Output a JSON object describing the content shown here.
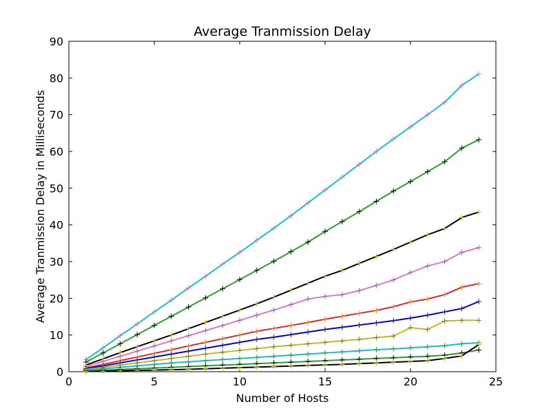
{
  "chart_data": {
    "type": "line",
    "title": "Average Tranmission Delay",
    "xlabel": "Number of Hosts",
    "ylabel": "Average Tranmission Delay in Milliseconds",
    "xlim": [
      0,
      25
    ],
    "ylim": [
      0,
      90
    ],
    "x_ticks": [
      "0",
      "5",
      "10",
      "15",
      "20",
      "25"
    ],
    "y_ticks": [
      "0",
      "10",
      "20",
      "30",
      "40",
      "50",
      "60",
      "70",
      "80",
      "90"
    ],
    "grid": false,
    "legend": "none",
    "marker": "plus",
    "x": [
      1,
      2,
      3,
      4,
      5,
      6,
      7,
      8,
      9,
      10,
      11,
      12,
      13,
      14,
      15,
      16,
      17,
      18,
      19,
      20,
      21,
      22,
      23,
      24
    ],
    "series": [
      {
        "color": "#17becf",
        "marker_color": "#e377c2",
        "values": [
          3.3,
          6.5,
          9.8,
          13,
          16.3,
          19.5,
          22.8,
          26,
          29.3,
          32.5,
          35.8,
          39.1,
          42.5,
          46,
          49.5,
          53,
          56.5,
          60,
          63.4,
          66.7,
          70,
          73.4,
          78,
          81.1
        ]
      },
      {
        "color": "#2ca02c",
        "marker_color": "#000000",
        "values": [
          2.6,
          5.1,
          7.6,
          10.1,
          12.6,
          15.1,
          17.6,
          20.1,
          22.6,
          25.1,
          27.6,
          30.1,
          32.7,
          35.3,
          38.2,
          40.9,
          43.6,
          46.4,
          49.2,
          51.8,
          54.5,
          57.2,
          60.9,
          63.2
        ]
      },
      {
        "color": "#000000",
        "marker_color": "#bcbd22",
        "values": [
          1.8,
          3.5,
          5.2,
          6.8,
          8.4,
          10,
          11.7,
          13.4,
          15.1,
          16.8,
          18.5,
          20.3,
          22.2,
          24.1,
          26,
          27.6,
          29.5,
          31.4,
          33.3,
          35.3,
          37.3,
          39,
          42,
          43.5
        ]
      },
      {
        "color": "#e377c2",
        "marker_color": "#9467bd",
        "values": [
          1.4,
          2.8,
          4.2,
          5.6,
          7,
          8.4,
          9.8,
          11.2,
          12.6,
          14,
          15.4,
          16.8,
          18.3,
          19.8,
          20.5,
          21,
          22.1,
          23.5,
          25,
          27,
          28.8,
          30,
          32.5,
          33.8
        ]
      },
      {
        "color": "#d62728",
        "marker_color": "#ff7f0e",
        "values": [
          1,
          2,
          3,
          4,
          5,
          6,
          7,
          8,
          9,
          10,
          11,
          11.8,
          12.6,
          13.4,
          14.3,
          15.1,
          15.9,
          16.7,
          17.7,
          19,
          19.8,
          21,
          23,
          24
        ]
      },
      {
        "color": "#0000cc",
        "marker_color": "#1f1f8f",
        "values": [
          0.8,
          1.6,
          2.4,
          3.2,
          4,
          4.8,
          5.6,
          6.4,
          7.2,
          8,
          8.8,
          9.4,
          10.1,
          10.8,
          11.5,
          12.1,
          12.7,
          13.3,
          13.9,
          14.6,
          15.4,
          16.3,
          17.2,
          19.1
        ]
      },
      {
        "color": "#bcbd22",
        "marker_color": "#8c6d31",
        "values": [
          0.6,
          1.2,
          1.8,
          2.4,
          3,
          3.6,
          4.2,
          4.8,
          5.3,
          5.8,
          6.3,
          6.8,
          7.2,
          7.6,
          8,
          8.4,
          8.8,
          9.3,
          9.7,
          12,
          11.5,
          13.8,
          14,
          14
        ]
      },
      {
        "color": "#17becf",
        "marker_color": "#2ca02c",
        "values": [
          0.4,
          0.8,
          1.2,
          1.6,
          2,
          2.4,
          2.7,
          3,
          3.3,
          3.6,
          3.9,
          4.2,
          4.5,
          4.8,
          5.1,
          5.4,
          5.7,
          6,
          6.2,
          6.5,
          6.8,
          7.1,
          7.6,
          7.9
        ]
      },
      {
        "color": "#2ca02c",
        "marker_color": "#000000",
        "values": [
          0.2,
          0.4,
          0.6,
          0.8,
          1,
          1.2,
          1.4,
          1.6,
          1.8,
          2,
          2.2,
          2.4,
          2.6,
          2.8,
          3,
          3.2,
          3.4,
          3.6,
          3.8,
          4,
          4.2,
          4.5,
          5.1,
          5.9
        ]
      },
      {
        "color": "#000000",
        "marker_color": "#bcbd22",
        "values": [
          0.05,
          0.15,
          0.25,
          0.35,
          0.45,
          0.55,
          0.65,
          0.8,
          0.95,
          1.1,
          1.25,
          1.4,
          1.55,
          1.7,
          1.85,
          2,
          2.2,
          2.4,
          2.6,
          2.8,
          3,
          3.6,
          4.3,
          7.4
        ]
      }
    ]
  }
}
